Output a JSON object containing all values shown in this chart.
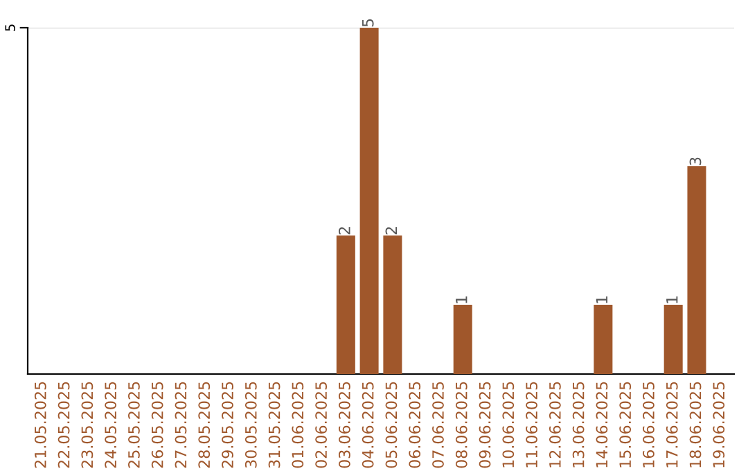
{
  "chart_data": {
    "type": "bar",
    "categories": [
      "21.05.2025",
      "22.05.2025",
      "23.05.2025",
      "24.05.2025",
      "25.05.2025",
      "26.05.2025",
      "27.05.2025",
      "28.05.2025",
      "29.05.2025",
      "30.05.2025",
      "31.05.2025",
      "01.06.2025",
      "02.06.2025",
      "03.06.2025",
      "04.06.2025",
      "05.06.2025",
      "06.06.2025",
      "07.06.2025",
      "08.06.2025",
      "09.06.2025",
      "10.06.2025",
      "11.06.2025",
      "12.06.2025",
      "13.06.2025",
      "14.06.2025",
      "15.06.2025",
      "16.06.2025",
      "17.06.2025",
      "18.06.2025",
      "19.06.2025"
    ],
    "values": [
      null,
      null,
      null,
      null,
      null,
      null,
      null,
      null,
      null,
      null,
      null,
      null,
      null,
      2,
      5,
      2,
      null,
      null,
      1,
      null,
      null,
      null,
      null,
      null,
      1,
      null,
      null,
      1,
      3,
      null
    ],
    "data_labels": true,
    "color": "#a0572b",
    "ylim": [
      0,
      5
    ],
    "annotations": [
      "5"
    ],
    "legend": false
  }
}
